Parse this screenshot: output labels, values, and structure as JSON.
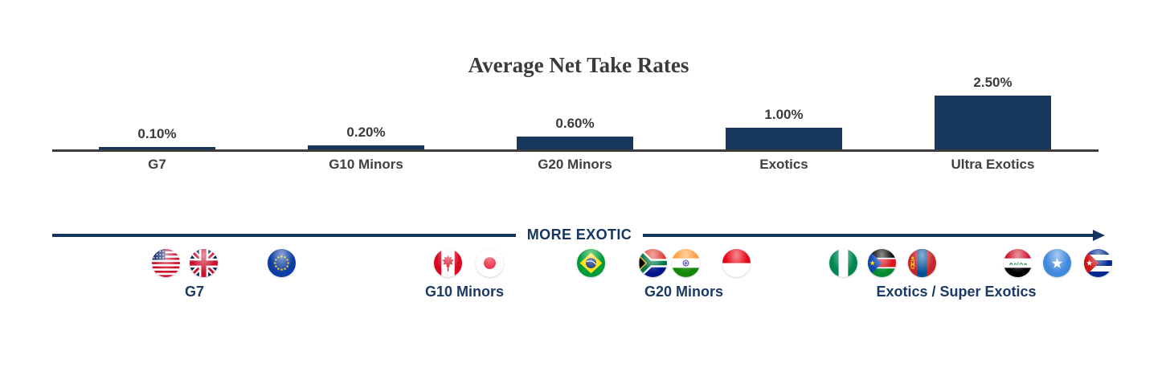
{
  "page": {
    "background": "#FFFFFF"
  },
  "chart_data": {
    "type": "bar",
    "title": "Average Net Take Rates",
    "categories": [
      "G7",
      "G10 Minors",
      "G20 Minors",
      "Exotics",
      "Ultra Exotics"
    ],
    "values": [
      0.1,
      0.2,
      0.6,
      1.0,
      2.5
    ],
    "value_labels": [
      "0.10%",
      "0.20%",
      "0.60%",
      "1.00%",
      "2.50%"
    ],
    "unit": "%",
    "ylim": [
      0,
      2.5
    ],
    "grid": false,
    "legend": "none",
    "bar_color": "#17375C",
    "axis_color": "#3C3C3C"
  },
  "exotic_axis": {
    "label": "MORE EXOTIC",
    "direction": "right",
    "groups": [
      {
        "label": "G7",
        "flags": [
          {
            "name": "United States",
            "icon": "us-flag-icon"
          },
          {
            "name": "United Kingdom",
            "icon": "uk-flag-icon"
          },
          {
            "name": "European Union",
            "icon": "eu-flag-icon"
          }
        ]
      },
      {
        "label": "G10 Minors",
        "flags": [
          {
            "name": "Canada",
            "icon": "canada-flag-icon"
          },
          {
            "name": "Japan",
            "icon": "japan-flag-icon"
          }
        ]
      },
      {
        "label": "G20 Minors",
        "flags": [
          {
            "name": "Brazil",
            "icon": "brazil-flag-icon"
          },
          {
            "name": "South Africa",
            "icon": "south-africa-flag-icon"
          },
          {
            "name": "India",
            "icon": "india-flag-icon"
          },
          {
            "name": "Indonesia",
            "icon": "indonesia-flag-icon"
          }
        ]
      },
      {
        "label": "Exotics / Super Exotics",
        "flags": [
          {
            "name": "Nigeria",
            "icon": "nigeria-flag-icon"
          },
          {
            "name": "South Sudan",
            "icon": "south-sudan-flag-icon"
          },
          {
            "name": "Mongolia",
            "icon": "mongolia-flag-icon"
          },
          {
            "name": "Iraq",
            "icon": "iraq-flag-icon"
          },
          {
            "name": "Somalia",
            "icon": "somalia-flag-icon"
          },
          {
            "name": "Cuba",
            "icon": "cuba-flag-icon"
          }
        ]
      }
    ]
  },
  "colors": {
    "bar": "#17375C",
    "navy": "#16355E",
    "navy_label": "#1B3A64",
    "axis": "#3C3C3C",
    "value_text": "#3A3A3A",
    "category_text": "#404040",
    "background": "#FFFFFF"
  }
}
